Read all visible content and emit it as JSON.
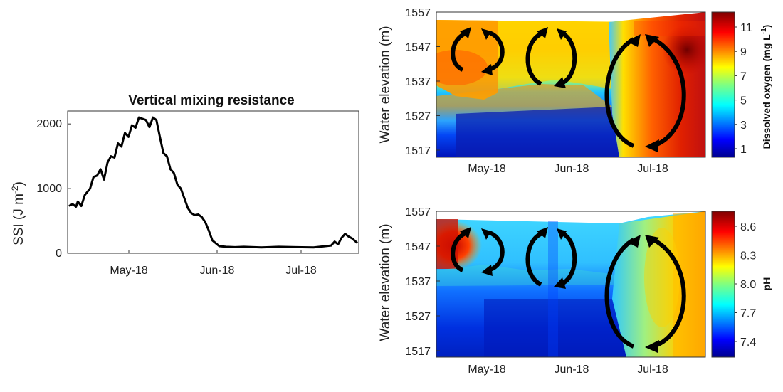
{
  "chart_data": [
    {
      "type": "line",
      "title": "Vertical mixing resistance",
      "ylabel": "SSI (J m",
      "ylabel_sup": "-2",
      "ylabel_end": ")",
      "xlabel": "",
      "ylim": [
        0,
        2200
      ],
      "yticks": [
        0,
        1000,
        2000
      ],
      "xticks": [
        "May-18",
        "Jun-18",
        "Jul-18"
      ],
      "grid": false,
      "series": [
        {
          "x": [
            0,
            2,
            4,
            5,
            7,
            9,
            12,
            14,
            16,
            18,
            20,
            22,
            24,
            26,
            28,
            30,
            32,
            34,
            36,
            38,
            40,
            42,
            44,
            46,
            48,
            50,
            52,
            54,
            56,
            58,
            60,
            62,
            64,
            66,
            68,
            70,
            72,
            74,
            76,
            78,
            80,
            82,
            86,
            90,
            95,
            100,
            110,
            120,
            130,
            140,
            150,
            152,
            154,
            156,
            158,
            160,
            162,
            165
          ],
          "y": [
            730,
            760,
            720,
            800,
            730,
            900,
            1000,
            1180,
            1200,
            1300,
            1140,
            1400,
            1500,
            1480,
            1700,
            1650,
            1860,
            1800,
            1980,
            1940,
            2100,
            2080,
            2060,
            1950,
            2100,
            2060,
            1800,
            1550,
            1500,
            1300,
            1240,
            1060,
            1000,
            850,
            700,
            620,
            590,
            600,
            560,
            480,
            350,
            200,
            110,
            100,
            95,
            100,
            90,
            100,
            95,
            90,
            120,
            180,
            140,
            240,
            300,
            260,
            230,
            160
          ]
        }
      ]
    },
    {
      "type": "heatmap",
      "ylabel": "Water elevation (m)",
      "yticks": [
        1517,
        1527,
        1537,
        1547,
        1557
      ],
      "xticks": [
        "May-18",
        "Jun-18",
        "Jul-18"
      ],
      "colorbar_label": "Dissolved oxygen (mg L",
      "colorbar_label_sup": "-1",
      "colorbar_label_end": ")",
      "colorbar_ticks": [
        "1",
        "3",
        "5",
        "7",
        "9",
        "11"
      ]
    },
    {
      "type": "heatmap",
      "ylabel": "Water elevation (m)",
      "yticks": [
        1517,
        1527,
        1537,
        1547,
        1557
      ],
      "xticks": [
        "May-18",
        "Jun-18",
        "Jul-18"
      ],
      "colorbar_label": "pH",
      "colorbar_ticks": [
        "7.4",
        "7.7",
        "8.0",
        "8.3",
        "8.6"
      ]
    }
  ]
}
